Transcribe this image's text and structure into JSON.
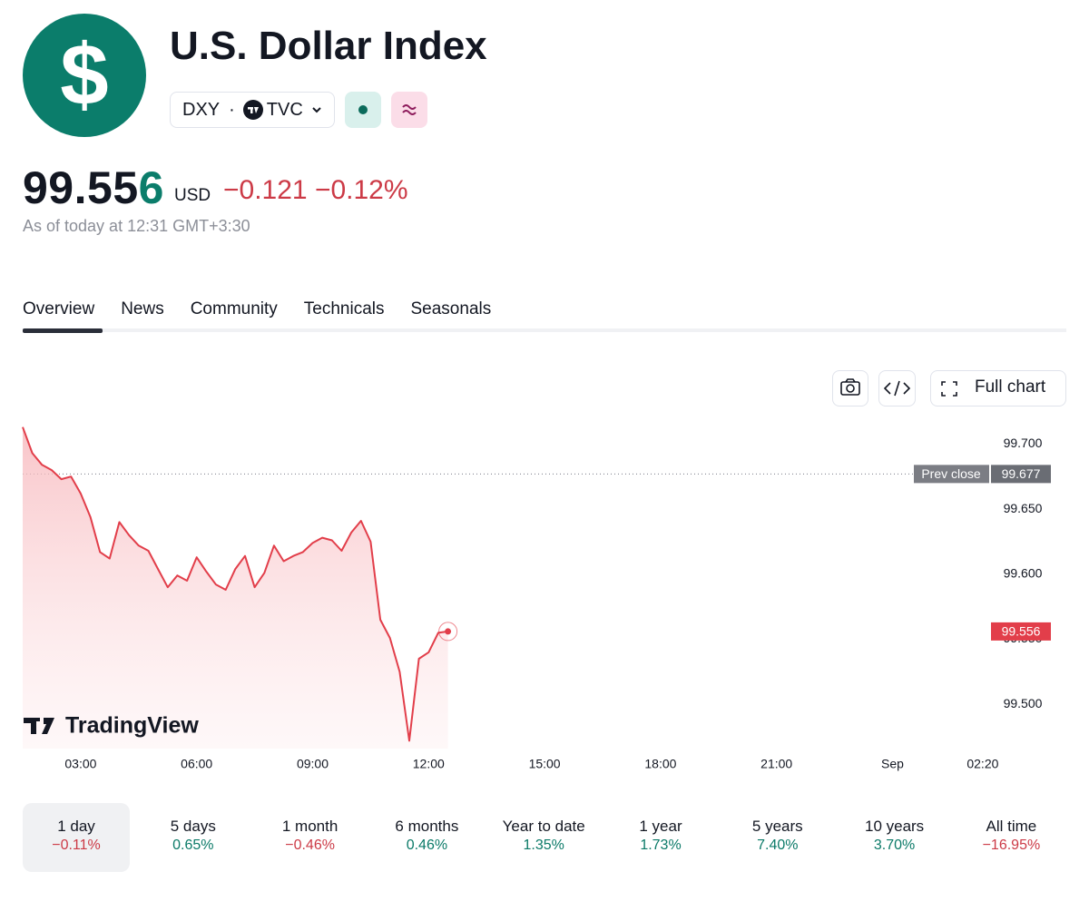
{
  "header": {
    "logo_symbol": "$",
    "title": "U.S. Dollar Index",
    "symbol": "DXY",
    "separator": "·",
    "exchange": "TVC"
  },
  "quote": {
    "price_main": "99.55",
    "price_last_digit": "6",
    "currency": "USD",
    "change": "−0.121",
    "change_percent": "−0.12%",
    "change_color": "#cc3a46",
    "as_of": "As of today at 12:31 GMT+3:30"
  },
  "tabs": [
    "Overview",
    "News",
    "Community",
    "Technicals",
    "Seasonals"
  ],
  "toolbar": {
    "full_chart": "Full chart"
  },
  "chart_data": {
    "type": "line",
    "x": [
      1.5,
      1.75,
      2.0,
      2.25,
      2.5,
      2.75,
      3.0,
      3.25,
      3.5,
      3.75,
      4.0,
      4.25,
      4.5,
      4.75,
      5.0,
      5.25,
      5.5,
      5.75,
      6.0,
      6.25,
      6.5,
      6.75,
      7.0,
      7.25,
      7.5,
      7.75,
      8.0,
      8.25,
      8.5,
      8.75,
      9.0,
      9.25,
      9.5,
      9.75,
      10.0,
      10.25,
      10.5,
      10.75,
      11.0,
      11.25,
      11.5,
      11.75,
      12.0,
      12.25,
      12.5
    ],
    "series": [
      {
        "color": "#e23e4a",
        "values": [
          99.713,
          99.693,
          99.684,
          99.68,
          99.673,
          99.675,
          99.662,
          99.644,
          99.617,
          99.612,
          99.64,
          99.63,
          99.622,
          99.618,
          99.604,
          99.59,
          99.599,
          99.595,
          99.613,
          99.602,
          99.592,
          99.588,
          99.604,
          99.614,
          99.59,
          99.601,
          99.622,
          99.61,
          99.614,
          99.617,
          99.624,
          99.628,
          99.626,
          99.618,
          99.632,
          99.641,
          99.625,
          99.565,
          99.551,
          99.525,
          99.472,
          99.535,
          99.54,
          99.555,
          99.556
        ]
      }
    ],
    "xlim": [
      1.5,
      26.5
    ],
    "xticks": [
      {
        "value": 3,
        "label": "03:00"
      },
      {
        "value": 6,
        "label": "06:00"
      },
      {
        "value": 9,
        "label": "09:00"
      },
      {
        "value": 12,
        "label": "12:00"
      },
      {
        "value": 15,
        "label": "15:00"
      },
      {
        "value": 18,
        "label": "18:00"
      },
      {
        "value": 21,
        "label": "21:00"
      },
      {
        "value": 24,
        "label": "Sep"
      },
      {
        "value": 26.333,
        "label": "02:20"
      }
    ],
    "ylim": [
      99.466,
      99.717
    ],
    "yticks": [
      {
        "value": 99.5,
        "label": "99.500"
      },
      {
        "value": 99.55,
        "label": "99.550"
      },
      {
        "value": 99.6,
        "label": "99.600"
      },
      {
        "value": 99.65,
        "label": "99.650"
      },
      {
        "value": 99.7,
        "label": "99.700"
      }
    ],
    "grid": false,
    "prev_close": {
      "label": "Prev close",
      "value": 99.677
    }
  },
  "watermark": "TradingView",
  "periods": [
    {
      "label": "1 day",
      "change": "−0.11%",
      "color": "#cc3a46"
    },
    {
      "label": "5 days",
      "change": "0.65%",
      "color": "#0b7a68"
    },
    {
      "label": "1 month",
      "change": "−0.46%",
      "color": "#cc3a46"
    },
    {
      "label": "6 months",
      "change": "0.46%",
      "color": "#0b7a68"
    },
    {
      "label": "Year to date",
      "change": "1.35%",
      "color": "#0b7a68"
    },
    {
      "label": "1 year",
      "change": "1.73%",
      "color": "#0b7a68"
    },
    {
      "label": "5 years",
      "change": "7.40%",
      "color": "#0b7a68"
    },
    {
      "label": "10 years",
      "change": "3.70%",
      "color": "#0b7a68"
    },
    {
      "label": "All time",
      "change": "−16.95%",
      "color": "#cc3a46"
    }
  ]
}
